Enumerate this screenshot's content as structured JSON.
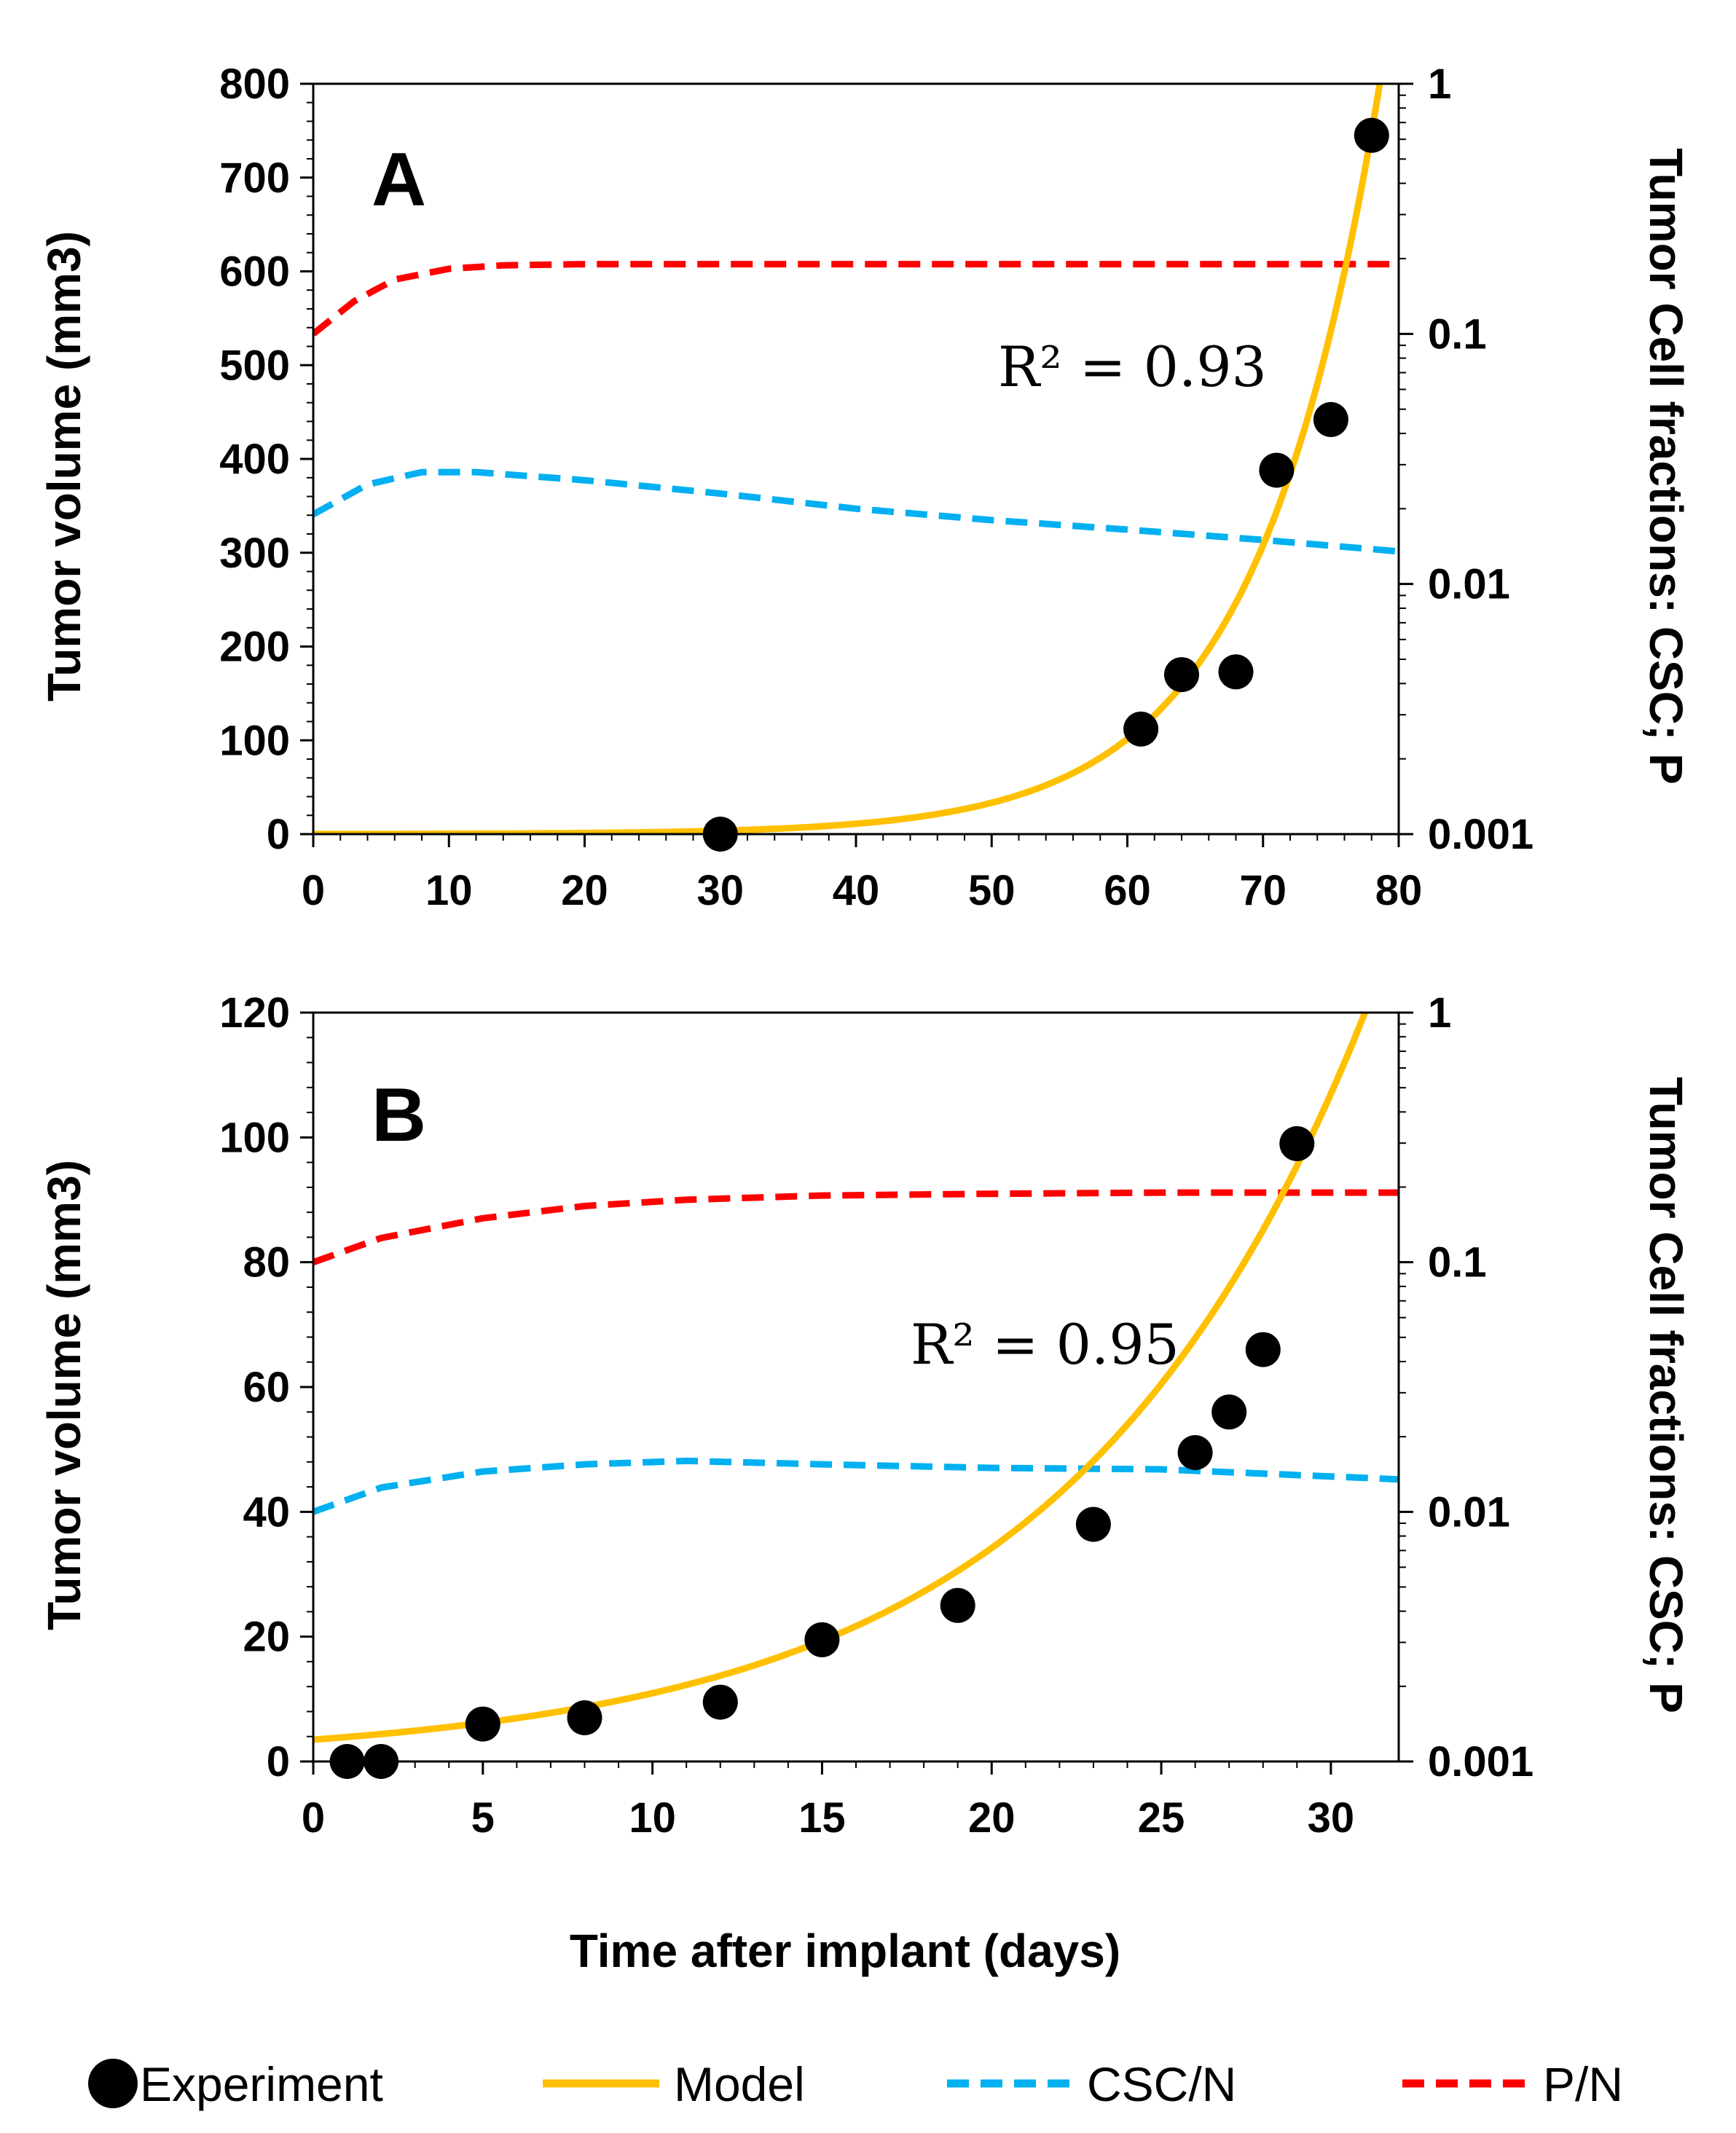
{
  "colors": {
    "experiment": "#000000",
    "model": "#FFC000",
    "csc": "#00B0F0",
    "p": "#FF0000",
    "axis": "#000000"
  },
  "xlabel": "Time after implant (days)",
  "legend": [
    {
      "key": "experiment",
      "label": "Experiment",
      "style": "marker"
    },
    {
      "key": "model",
      "label": "Model",
      "style": "solid"
    },
    {
      "key": "csc",
      "label": "CSC/N",
      "style": "dashed"
    },
    {
      "key": "p",
      "label": "P/N",
      "style": "dashed"
    }
  ],
  "chart_data": [
    {
      "type": "line",
      "panel": "A",
      "ylabel": "Tumor volume (mm3)",
      "y2label": "Tumor Cell fractions:  CSC; P",
      "annotation": {
        "text": "R² = 0.93",
        "r2": 0.93
      },
      "xlim": [
        0,
        80
      ],
      "xticks": [
        0,
        10,
        20,
        30,
        40,
        50,
        60,
        70,
        80
      ],
      "ylim": [
        0,
        800
      ],
      "yticks": [
        0,
        100,
        200,
        300,
        400,
        500,
        600,
        700,
        800
      ],
      "y2lim": [
        0.001,
        1
      ],
      "y2scale": "log",
      "y2ticks": [
        0.001,
        0.01,
        0.1,
        1
      ],
      "y2ticklabels": [
        "0.001",
        "0.01",
        "0.1",
        "1"
      ],
      "experiment": {
        "x": [
          30,
          61,
          64,
          68,
          71,
          75,
          78
        ],
        "y": [
          0,
          112,
          170,
          173,
          388,
          442,
          745
        ]
      },
      "model": {
        "V0": 0.13,
        "rate": 0.111,
        "xmax": 80
      },
      "csc": {
        "x": [
          0,
          4,
          8,
          12,
          20,
          30,
          40,
          50,
          60,
          70,
          80
        ],
        "y": [
          0.019,
          0.025,
          0.028,
          0.028,
          0.026,
          0.023,
          0.02,
          0.018,
          0.0165,
          0.015,
          0.0135
        ]
      },
      "p": {
        "x": [
          0,
          3,
          6,
          10,
          14,
          20,
          40,
          60,
          80
        ],
        "y": [
          0.1,
          0.135,
          0.165,
          0.182,
          0.188,
          0.19,
          0.19,
          0.19,
          0.19
        ]
      }
    },
    {
      "type": "line",
      "panel": "B",
      "ylabel": "Tumor volume (mm3)",
      "y2label": "Tumor Cell fractions:  CSC; P",
      "annotation": {
        "text": "R² = 0.95",
        "r2": 0.95
      },
      "xlim": [
        0,
        32
      ],
      "xticks": [
        0,
        5,
        10,
        15,
        20,
        25,
        30
      ],
      "ylim": [
        0,
        120
      ],
      "yticks": [
        0,
        20,
        40,
        60,
        80,
        100,
        120
      ],
      "y2lim": [
        0.001,
        1
      ],
      "y2scale": "log",
      "y2ticks": [
        0.001,
        0.01,
        0.1,
        1
      ],
      "y2ticklabels": [
        "0.001",
        "0.01",
        "0.1",
        "1"
      ],
      "experiment": {
        "x": [
          1,
          2,
          5,
          8,
          12,
          15,
          19,
          23,
          26,
          27,
          28,
          29
        ],
        "y": [
          0,
          0,
          6,
          7,
          9.5,
          19.5,
          25,
          38,
          49.5,
          56,
          66,
          99
        ]
      },
      "model": {
        "V0": 3.5,
        "rate": 0.114,
        "xmax": 32
      },
      "csc": {
        "x": [
          0,
          2,
          5,
          8,
          11,
          15,
          20,
          25,
          32
        ],
        "y": [
          0.01,
          0.0125,
          0.0145,
          0.0155,
          0.016,
          0.0155,
          0.015,
          0.0148,
          0.0135
        ]
      },
      "p": {
        "x": [
          0,
          2,
          5,
          8,
          11,
          15,
          20,
          25,
          32
        ],
        "y": [
          0.1,
          0.125,
          0.15,
          0.168,
          0.178,
          0.185,
          0.188,
          0.19,
          0.19
        ]
      }
    }
  ]
}
